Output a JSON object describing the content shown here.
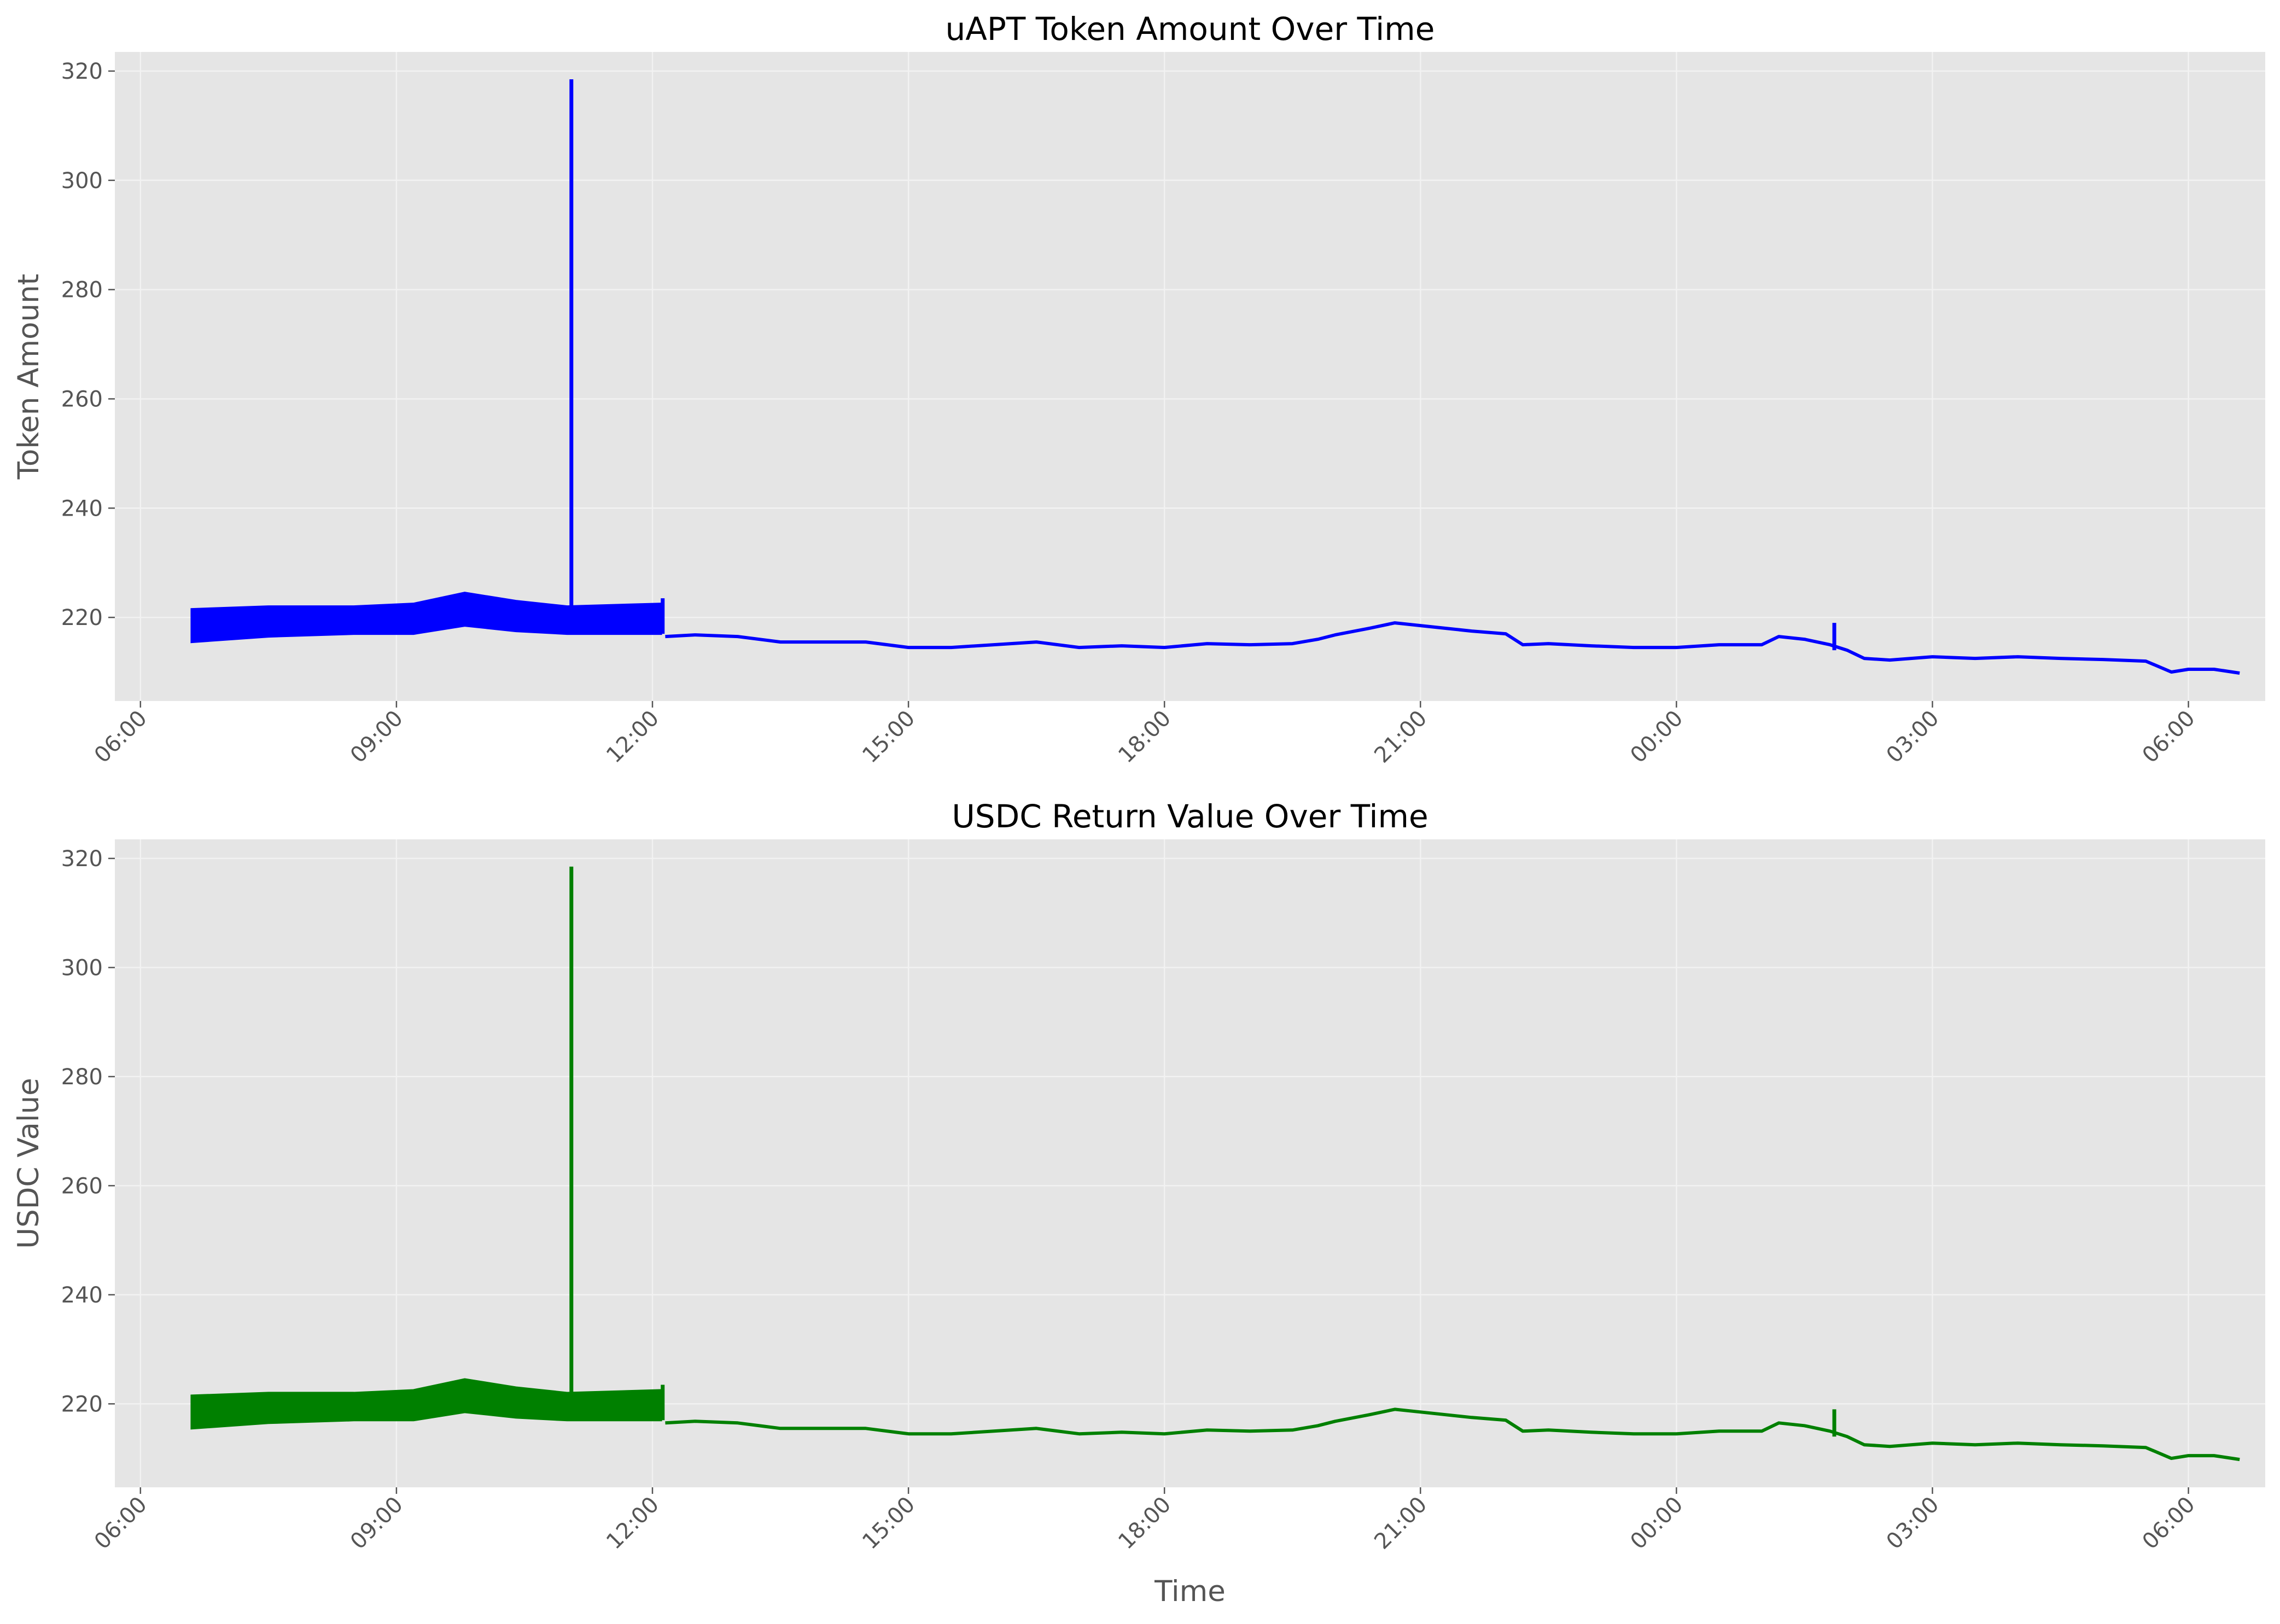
{
  "chart_data": [
    {
      "type": "line",
      "title": "uAPT Token Amount Over Time",
      "xlabel": "",
      "ylabel": "Token Amount",
      "grid": true,
      "color": "#0000ff",
      "xlim": [
        5.7,
        30.9
      ],
      "ylim": [
        204.7,
        323.5
      ],
      "xticks": [
        {
          "label": "06:00",
          "t": 6
        },
        {
          "label": "09:00",
          "t": 9
        },
        {
          "label": "12:00",
          "t": 12
        },
        {
          "label": "15:00",
          "t": 15
        },
        {
          "label": "18:00",
          "t": 18
        },
        {
          "label": "21:00",
          "t": 21
        },
        {
          "label": "00:00",
          "t": 24
        },
        {
          "label": "03:00",
          "t": 27
        },
        {
          "label": "06:00",
          "t": 30
        }
      ],
      "yticks": [
        220,
        240,
        260,
        280,
        300,
        320
      ],
      "dense_band": {
        "t": [
          6.6,
          7.5,
          8.5,
          9.2,
          9.8,
          10.4,
          11.0,
          12.1
        ],
        "upper": [
          221.5,
          222.0,
          222.0,
          222.5,
          224.5,
          223.0,
          222.0,
          222.5
        ],
        "lower": [
          215.5,
          216.5,
          217.0,
          217.0,
          218.5,
          217.5,
          217.0,
          217.0
        ]
      },
      "spikes": [
        {
          "t": 11.05,
          "low": 218,
          "high": 318.5
        },
        {
          "t": 12.12,
          "low": 217,
          "high": 223.5
        },
        {
          "t": 25.85,
          "low": 214,
          "high": 219
        }
      ],
      "series": [
        {
          "x": [
            12.15,
            12.5,
            13.0,
            13.5,
            14.0,
            14.5,
            15.0,
            15.5,
            16.0,
            16.5,
            17.0,
            17.5,
            18.0,
            18.5,
            19.0,
            19.5,
            19.8,
            20.0,
            20.4,
            20.7,
            21.0,
            21.3,
            21.6,
            22.0,
            22.2,
            22.5,
            23.0,
            23.5,
            24.0,
            24.5,
            25.0,
            25.2,
            25.5,
            25.8,
            26.0,
            26.2,
            26.5,
            27.0,
            27.5,
            28.0,
            28.5,
            29.0,
            29.5,
            29.8,
            30.0,
            30.3,
            30.6
          ],
          "y": [
            216.5,
            216.8,
            216.5,
            215.5,
            215.5,
            215.5,
            214.5,
            214.5,
            215.0,
            215.5,
            214.5,
            214.8,
            214.5,
            215.2,
            215.0,
            215.2,
            216.0,
            216.8,
            218.0,
            219.0,
            218.5,
            218.0,
            217.5,
            217.0,
            215.0,
            215.2,
            214.8,
            214.5,
            214.5,
            215.0,
            215.0,
            216.5,
            216.0,
            215.0,
            214.0,
            212.5,
            212.2,
            212.8,
            212.5,
            212.8,
            212.5,
            212.3,
            212.0,
            210.0,
            210.5,
            210.5,
            209.8
          ]
        }
      ]
    },
    {
      "type": "line",
      "title": "USDC Return Value Over Time",
      "xlabel": "Time",
      "ylabel": "USDC Value",
      "grid": true,
      "color": "#008000",
      "xlim": [
        5.7,
        30.9
      ],
      "ylim": [
        204.7,
        323.5
      ],
      "xticks": [
        {
          "label": "06:00",
          "t": 6
        },
        {
          "label": "09:00",
          "t": 9
        },
        {
          "label": "12:00",
          "t": 12
        },
        {
          "label": "15:00",
          "t": 15
        },
        {
          "label": "18:00",
          "t": 18
        },
        {
          "label": "21:00",
          "t": 21
        },
        {
          "label": "00:00",
          "t": 24
        },
        {
          "label": "03:00",
          "t": 27
        },
        {
          "label": "06:00",
          "t": 30
        }
      ],
      "yticks": [
        220,
        240,
        260,
        280,
        300,
        320
      ],
      "dense_band": {
        "t": [
          6.6,
          7.5,
          8.5,
          9.2,
          9.8,
          10.4,
          11.0,
          12.1
        ],
        "upper": [
          221.5,
          222.0,
          222.0,
          222.5,
          224.5,
          223.0,
          222.0,
          222.5
        ],
        "lower": [
          215.5,
          216.5,
          217.0,
          217.0,
          218.5,
          217.5,
          217.0,
          217.0
        ]
      },
      "spikes": [
        {
          "t": 11.05,
          "low": 218,
          "high": 318.5
        },
        {
          "t": 12.12,
          "low": 217,
          "high": 223.5
        },
        {
          "t": 25.85,
          "low": 214,
          "high": 219
        }
      ],
      "series": [
        {
          "x": [
            12.15,
            12.5,
            13.0,
            13.5,
            14.0,
            14.5,
            15.0,
            15.5,
            16.0,
            16.5,
            17.0,
            17.5,
            18.0,
            18.5,
            19.0,
            19.5,
            19.8,
            20.0,
            20.4,
            20.7,
            21.0,
            21.3,
            21.6,
            22.0,
            22.2,
            22.5,
            23.0,
            23.5,
            24.0,
            24.5,
            25.0,
            25.2,
            25.5,
            25.8,
            26.0,
            26.2,
            26.5,
            27.0,
            27.5,
            28.0,
            28.5,
            29.0,
            29.5,
            29.8,
            30.0,
            30.3,
            30.6
          ],
          "y": [
            216.5,
            216.8,
            216.5,
            215.5,
            215.5,
            215.5,
            214.5,
            214.5,
            215.0,
            215.5,
            214.5,
            214.8,
            214.5,
            215.2,
            215.0,
            215.2,
            216.0,
            216.8,
            218.0,
            219.0,
            218.5,
            218.0,
            217.5,
            217.0,
            215.0,
            215.2,
            214.8,
            214.5,
            214.5,
            215.0,
            215.0,
            216.5,
            216.0,
            215.0,
            214.0,
            212.5,
            212.2,
            212.8,
            212.5,
            212.8,
            212.5,
            212.3,
            212.0,
            210.0,
            210.5,
            210.5,
            209.8
          ]
        }
      ]
    }
  ]
}
